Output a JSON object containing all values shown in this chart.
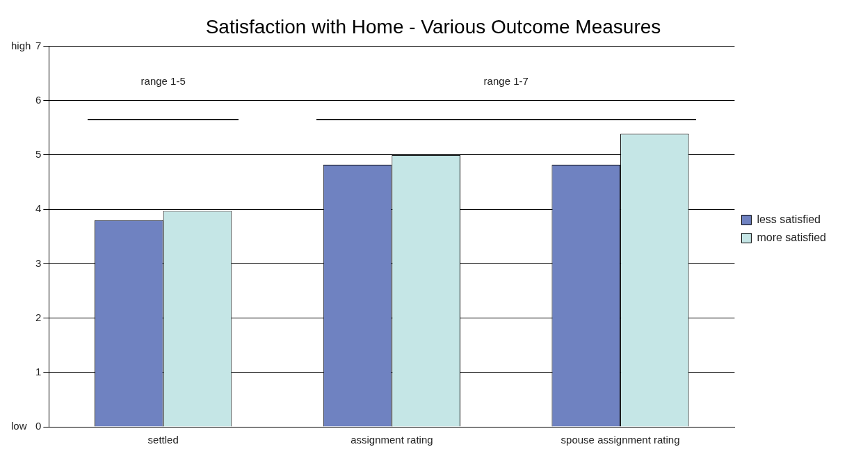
{
  "chart_data": {
    "type": "bar",
    "title": "Satisfaction with Home - Various Outcome Measures",
    "categories": [
      "settled",
      "assignment rating",
      "spouse assignment rating"
    ],
    "series": [
      {
        "name": "less satisfied",
        "color": "#6f82c1",
        "values": [
          3.8,
          4.82,
          4.82
        ]
      },
      {
        "name": "more satisfied",
        "color": "#c5e6e6",
        "values": [
          3.97,
          5.0,
          5.39
        ]
      }
    ],
    "ylim": [
      0,
      7
    ],
    "yticks": [
      0,
      1,
      2,
      3,
      4,
      5,
      6,
      7
    ],
    "grid": "y",
    "legend": "right",
    "annotations": [
      "high",
      "low",
      "range 1-5",
      "range 1-7"
    ]
  }
}
